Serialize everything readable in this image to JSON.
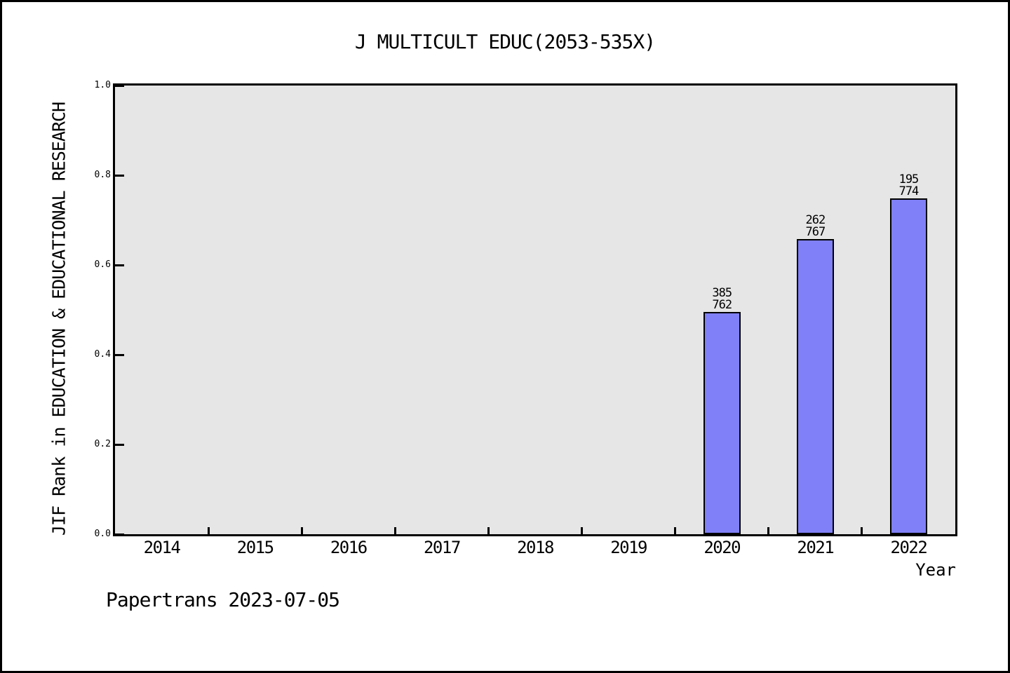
{
  "page": {
    "background": "#ffffff",
    "frame_border_color": "#000000"
  },
  "chart_data": {
    "type": "bar",
    "title": "J MULTICULT EDUC(2053-535X)",
    "ylabel": "JIF Rank in EDUCATION & EDUCATIONAL RESEARCH",
    "xlabel": "Year",
    "categories": [
      "2014",
      "2015",
      "2016",
      "2017",
      "2018",
      "2019",
      "2020",
      "2021",
      "2022"
    ],
    "values": [
      null,
      null,
      null,
      null,
      null,
      null,
      0.4948,
      0.6584,
      0.7481
    ],
    "bars": [
      {
        "year": "2020",
        "rank": "385",
        "total": "762",
        "value": 0.4948
      },
      {
        "year": "2021",
        "rank": "262",
        "total": "767",
        "value": 0.6584
      },
      {
        "year": "2022",
        "rank": "195",
        "total": "774",
        "value": 0.7481
      }
    ],
    "ylim": [
      0.0,
      1.0
    ],
    "yticks": [
      "0.0",
      "0.2",
      "0.4",
      "0.6",
      "0.8",
      "1.0"
    ],
    "grid": false,
    "legend": null,
    "plot_bg": "#e6e6e6",
    "bar_color": "#8080f8",
    "bar_border_color": "#000000",
    "axis_color": "#000000"
  },
  "footer": {
    "text": "Papertrans 2023-07-05"
  }
}
